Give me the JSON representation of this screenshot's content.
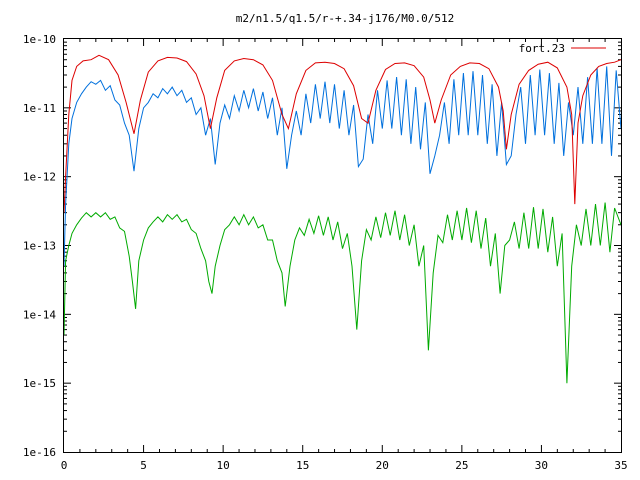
{
  "chart_data": {
    "type": "line",
    "title": "m2/n1.5/q1.5/r-+.34-j176/M0.0/512",
    "xlabel": "",
    "ylabel": "",
    "xlim": [
      0,
      35
    ],
    "ylim": [
      1e-16,
      1e-10
    ],
    "yscale": "log",
    "grid": false,
    "legend_position": "top-right",
    "x_ticks": [
      0,
      5,
      10,
      15,
      20,
      25,
      30,
      35
    ],
    "x_tick_labels": [
      "0",
      "5",
      "10",
      "15",
      "20",
      "25",
      "30",
      "35"
    ],
    "y_ticks": [
      1e-16,
      1e-15,
      1e-14,
      1e-13,
      1e-12,
      1e-11,
      1e-10
    ],
    "y_tick_labels": [
      "1e-16",
      "1e-15",
      "1e-14",
      "1e-13",
      "1e-12",
      "1e-11",
      "1e-10"
    ],
    "series": [
      {
        "name": "fort.23",
        "color": "#dd0000",
        "x": [
          0,
          0.1,
          0.3,
          0.5,
          0.8,
          1.2,
          1.7,
          2.2,
          2.8,
          3.4,
          3.9,
          4.4,
          4.8,
          5.3,
          5.9,
          6.5,
          7.1,
          7.7,
          8.3,
          8.8,
          9.2,
          9.6,
          10.1,
          10.7,
          11.3,
          11.9,
          12.5,
          13.1,
          13.7,
          14.1,
          14.6,
          15.2,
          15.8,
          16.4,
          17.0,
          17.6,
          18.2,
          18.7,
          19.1,
          19.6,
          20.2,
          20.8,
          21.4,
          22.0,
          22.6,
          23.0,
          23.3,
          23.7,
          24.3,
          24.9,
          25.5,
          26.1,
          26.7,
          27.3,
          27.6,
          27.8,
          28.1,
          28.6,
          29.2,
          29.8,
          30.4,
          31.0,
          31.6,
          31.9,
          32.1,
          32.3,
          32.6,
          33.1,
          33.6,
          34.1,
          34.6,
          35.0
        ],
        "y": [
          3e-13,
          1e-12,
          8e-12,
          2.5e-11,
          4e-11,
          4.8e-11,
          5e-11,
          5.8e-11,
          5e-11,
          3e-11,
          1.2e-11,
          4.2e-12,
          1.3e-11,
          3.3e-11,
          4.8e-11,
          5.4e-11,
          5.3e-11,
          4.7e-11,
          3.1e-11,
          1.5e-11,
          5e-12,
          1.4e-11,
          3.5e-11,
          4.8e-11,
          5.2e-11,
          5e-11,
          4.2e-11,
          2.5e-11,
          8e-12,
          5e-12,
          1.6e-11,
          3.5e-11,
          4.5e-11,
          4.6e-11,
          4.4e-11,
          3.7e-11,
          2.1e-11,
          7e-12,
          6e-12,
          1.8e-11,
          3.6e-11,
          4.4e-11,
          4.5e-11,
          4.1e-11,
          2.8e-11,
          1.3e-11,
          6e-12,
          1.3e-11,
          3e-11,
          4e-11,
          4.5e-11,
          4.4e-11,
          3.7e-11,
          2e-11,
          9e-12,
          2.5e-12,
          8e-12,
          2.2e-11,
          3.5e-11,
          4.3e-11,
          4.6e-11,
          3.8e-11,
          2e-11,
          8e-12,
          4e-13,
          6e-12,
          1.5e-11,
          3e-11,
          4e-11,
          4.4e-11,
          4.6e-11,
          5e-11
        ]
      },
      {
        "name": "",
        "color": "#0070dd",
        "x": [
          0,
          0.1,
          0.3,
          0.5,
          0.8,
          1.1,
          1.4,
          1.7,
          2.0,
          2.3,
          2.6,
          2.9,
          3.2,
          3.5,
          3.8,
          4.1,
          4.4,
          4.7,
          5.0,
          5.3,
          5.6,
          5.9,
          6.2,
          6.5,
          6.8,
          7.1,
          7.4,
          7.7,
          8.0,
          8.3,
          8.6,
          8.9,
          9.2,
          9.5,
          9.8,
          10.1,
          10.4,
          10.7,
          11.0,
          11.3,
          11.6,
          11.9,
          12.2,
          12.5,
          12.8,
          13.1,
          13.4,
          13.7,
          14.0,
          14.3,
          14.6,
          14.9,
          15.2,
          15.5,
          15.8,
          16.1,
          16.4,
          16.7,
          17.0,
          17.3,
          17.6,
          17.9,
          18.2,
          18.5,
          18.8,
          19.1,
          19.4,
          19.7,
          20.0,
          20.3,
          20.6,
          20.9,
          21.2,
          21.5,
          21.8,
          22.1,
          22.4,
          22.7,
          23.0,
          23.3,
          23.6,
          23.9,
          24.2,
          24.5,
          24.8,
          25.1,
          25.4,
          25.7,
          26.0,
          26.3,
          26.6,
          26.9,
          27.2,
          27.5,
          27.8,
          28.1,
          28.4,
          28.7,
          29.0,
          29.3,
          29.6,
          29.9,
          30.2,
          30.5,
          30.8,
          31.1,
          31.4,
          31.7,
          32.0,
          32.3,
          32.6,
          32.9,
          33.2,
          33.5,
          33.8,
          34.1,
          34.4,
          34.7,
          35.0
        ],
        "y": [
          5e-14,
          4e-13,
          3e-12,
          7e-12,
          1.2e-11,
          1.6e-11,
          2e-11,
          2.4e-11,
          2.2e-11,
          2.5e-11,
          1.8e-11,
          2.1e-11,
          1.3e-11,
          1.1e-11,
          6e-12,
          4e-12,
          1.2e-12,
          5e-12,
          1e-11,
          1.2e-11,
          1.6e-11,
          1.4e-11,
          1.9e-11,
          1.6e-11,
          2e-11,
          1.5e-11,
          1.8e-11,
          1.2e-11,
          1.4e-11,
          8e-12,
          1e-11,
          4e-12,
          7e-12,
          1.5e-12,
          6e-12,
          1.1e-11,
          7e-12,
          1.5e-11,
          9e-12,
          1.8e-11,
          1e-11,
          1.9e-11,
          9e-12,
          1.7e-11,
          7e-12,
          1.4e-11,
          4e-12,
          1e-11,
          1.3e-12,
          4e-12,
          9e-12,
          4e-12,
          1.6e-11,
          6e-12,
          2.2e-11,
          7e-12,
          2.4e-11,
          6e-12,
          2.2e-11,
          5e-12,
          1.8e-11,
          4e-12,
          1.1e-11,
          1.4e-12,
          1.8e-12,
          8e-12,
          3e-12,
          1.8e-11,
          5e-12,
          2.5e-11,
          5e-12,
          2.8e-11,
          4e-12,
          2.6e-11,
          3e-12,
          2e-11,
          2.5e-12,
          1.2e-11,
          1.1e-12,
          2e-12,
          4e-12,
          1.2e-11,
          3e-12,
          2.6e-11,
          4e-12,
          3.2e-11,
          4e-12,
          3.4e-11,
          4e-12,
          3e-11,
          3e-12,
          2.2e-11,
          2e-12,
          1.2e-11,
          1.5e-12,
          2e-12,
          8e-12,
          2e-11,
          3e-12,
          3e-11,
          4e-12,
          3.6e-11,
          4e-12,
          3.2e-11,
          3e-12,
          2.3e-11,
          2e-12,
          1.2e-11,
          4e-12,
          2e-11,
          3e-12,
          2.8e-11,
          3e-12,
          3.8e-11,
          3e-12,
          4e-11,
          2e-12,
          3.5e-11,
          5e-12
        ]
      },
      {
        "name": "",
        "color": "#00aa00",
        "x": [
          0,
          0.1,
          0.3,
          0.5,
          0.8,
          1.1,
          1.4,
          1.7,
          2.0,
          2.3,
          2.6,
          2.9,
          3.2,
          3.5,
          3.8,
          4.1,
          4.3,
          4.5,
          4.7,
          5.0,
          5.3,
          5.6,
          5.9,
          6.2,
          6.5,
          6.8,
          7.1,
          7.4,
          7.7,
          8.0,
          8.3,
          8.6,
          8.9,
          9.1,
          9.3,
          9.5,
          9.8,
          10.1,
          10.4,
          10.7,
          11.0,
          11.3,
          11.6,
          11.9,
          12.2,
          12.5,
          12.8,
          13.1,
          13.4,
          13.7,
          13.9,
          14.2,
          14.5,
          14.8,
          15.1,
          15.4,
          15.7,
          16.0,
          16.3,
          16.6,
          16.9,
          17.2,
          17.5,
          17.8,
          18.1,
          18.4,
          18.7,
          19.0,
          19.3,
          19.6,
          19.9,
          20.2,
          20.5,
          20.8,
          21.1,
          21.4,
          21.7,
          22.0,
          22.3,
          22.6,
          22.9,
          23.2,
          23.5,
          23.8,
          24.1,
          24.4,
          24.7,
          25.0,
          25.3,
          25.6,
          25.9,
          26.2,
          26.5,
          26.8,
          27.1,
          27.4,
          27.7,
          28.0,
          28.3,
          28.6,
          28.9,
          29.2,
          29.5,
          29.8,
          30.1,
          30.4,
          30.7,
          31.0,
          31.3,
          31.6,
          31.9,
          32.2,
          32.5,
          32.8,
          33.1,
          33.4,
          33.7,
          34.0,
          34.3,
          34.6,
          35.0
        ],
        "y": [
          5e-15,
          6e-14,
          1e-13,
          1.5e-13,
          2e-13,
          2.5e-13,
          3e-13,
          2.6e-13,
          3e-13,
          2.6e-13,
          3e-13,
          2.4e-13,
          2.6e-13,
          1.8e-13,
          1.6e-13,
          7e-14,
          3e-14,
          1.2e-14,
          6e-14,
          1.2e-13,
          1.8e-13,
          2.2e-13,
          2.6e-13,
          2.2e-13,
          2.8e-13,
          2.4e-13,
          2.8e-13,
          2.2e-13,
          2.4e-13,
          1.7e-13,
          1.5e-13,
          9e-14,
          6e-14,
          3e-14,
          2e-14,
          5e-14,
          1e-13,
          1.7e-13,
          2e-13,
          2.6e-13,
          2e-13,
          2.8e-13,
          2e-13,
          2.6e-13,
          1.8e-13,
          2e-13,
          1.2e-13,
          1.2e-13,
          6e-14,
          4e-14,
          1.3e-14,
          5e-14,
          1.2e-13,
          1.8e-13,
          1.4e-13,
          2.4e-13,
          1.5e-13,
          2.7e-13,
          1.4e-13,
          2.6e-13,
          1.2e-13,
          2.2e-13,
          9e-14,
          1.5e-13,
          5e-14,
          6e-15,
          6e-14,
          1.7e-13,
          1.2e-13,
          2.6e-13,
          1.3e-13,
          3e-13,
          1.4e-13,
          3.2e-13,
          1.2e-13,
          2.8e-13,
          1e-13,
          2e-13,
          5e-14,
          1e-13,
          3e-15,
          4e-14,
          1.4e-13,
          1.1e-13,
          2.8e-13,
          1.2e-13,
          3.2e-13,
          1.2e-13,
          3.5e-13,
          1.1e-13,
          3.2e-13,
          9e-14,
          2.5e-13,
          5e-14,
          1.5e-13,
          2e-14,
          1e-13,
          1.2e-13,
          2.2e-13,
          9e-14,
          3e-13,
          9e-14,
          3.6e-13,
          9e-14,
          3.4e-13,
          8e-14,
          2.6e-13,
          5e-14,
          1.5e-13,
          1e-15,
          5e-14,
          2e-13,
          1e-13,
          3.4e-13,
          1e-13,
          4e-13,
          1e-13,
          4.2e-13,
          8e-14,
          3.5e-13,
          2e-13
        ]
      }
    ]
  }
}
